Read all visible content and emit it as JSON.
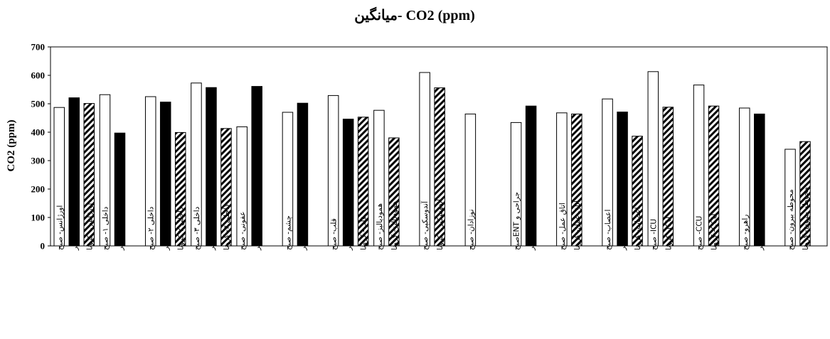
{
  "chart_data": {
    "type": "bar",
    "title": "CO2 (ppm) -میانگین",
    "ylabel": "CO2 (ppm)",
    "ylim": [
      0,
      700
    ],
    "yticks": [
      0,
      100,
      200,
      300,
      400,
      500,
      600,
      700
    ],
    "grid": false,
    "legend": "none",
    "colors": {
      "white": "#ffffff",
      "black": "#000000",
      "hatch": "#000000",
      "outline": "#000000"
    },
    "groups": [
      {
        "bars": [
          {
            "label": "اورژانس- صبح",
            "value": 487,
            "fill": "white"
          },
          {
            "label": "اورژانس- عصر",
            "value": 521,
            "fill": "black"
          },
          {
            "label": "اورژانس- کرونا",
            "value": 501,
            "fill": "hatch"
          }
        ]
      },
      {
        "bars": [
          {
            "label": "داخلی ۱- صبح",
            "value": 532,
            "fill": "white"
          },
          {
            "label": "داخلی ۱- عصر",
            "value": 397,
            "fill": "black"
          }
        ]
      },
      {
        "bars": [
          {
            "label": "داخلی ۲- صبح",
            "value": 525,
            "fill": "white"
          },
          {
            "label": "داخلی ۲- عصر",
            "value": 506,
            "fill": "black"
          },
          {
            "label": "داخلی ۲ کرونا",
            "value": 399,
            "fill": "hatch"
          }
        ]
      },
      {
        "bars": [
          {
            "label": "داخلی ۳- صبح",
            "value": 573,
            "fill": "white"
          },
          {
            "label": "داخلی ۳- عصر",
            "value": 557,
            "fill": "black"
          },
          {
            "label": "داخلی ۳- کرونا",
            "value": 413,
            "fill": "hatch"
          }
        ]
      },
      {
        "bars": [
          {
            "label": "عفونی- صبح",
            "value": 419,
            "fill": "white"
          },
          {
            "label": "عفونی- عصر",
            "value": 561,
            "fill": "black"
          }
        ]
      },
      {
        "bars": [
          {
            "label": "چشم- صبح",
            "value": 470,
            "fill": "white"
          },
          {
            "label": "چشم- عصر",
            "value": 502,
            "fill": "black"
          }
        ]
      },
      {
        "bars": [
          {
            "label": "قلب- صبح",
            "value": 529,
            "fill": "white"
          },
          {
            "label": "قلب- عصر",
            "value": 446,
            "fill": "black"
          },
          {
            "label": "قلب- کرونا",
            "value": 453,
            "fill": "hatch"
          }
        ]
      },
      {
        "bars": [
          {
            "label": "همودیالیز- صبح",
            "value": 477,
            "fill": "white"
          },
          {
            "label": "همودیالیز- کرونا",
            "value": 380,
            "fill": "hatch"
          }
        ]
      },
      {
        "bars": [
          {
            "label": "آندوسکپی- صبح",
            "value": 610,
            "fill": "white"
          },
          {
            "label": "آندوسکپی- کرونا",
            "value": 556,
            "fill": "hatch"
          }
        ]
      },
      {
        "bars": [
          {
            "label": "نوزادان- صبح",
            "value": 464,
            "fill": "white"
          }
        ]
      },
      {
        "bars": [
          {
            "label": "جراحی و ENTصبح",
            "value": 434,
            "fill": "white"
          },
          {
            "label": "جراحی و ENTعصر",
            "value": 492,
            "fill": "black"
          }
        ]
      },
      {
        "bars": [
          {
            "label": "اتاق عمل- صبح",
            "value": 468,
            "fill": "white"
          },
          {
            "label": "اتاق عمل- کرونا",
            "value": 464,
            "fill": "hatch"
          }
        ]
      },
      {
        "bars": [
          {
            "label": "اعصاب- صبح",
            "value": 517,
            "fill": "white"
          },
          {
            "label": "اعصاب- عصر",
            "value": 471,
            "fill": "black"
          },
          {
            "label": "اعصاب- کرونا",
            "value": 386,
            "fill": "hatch"
          }
        ]
      },
      {
        "bars": [
          {
            "label": "ICU- صبح",
            "value": 613,
            "fill": "white"
          },
          {
            "label": "ICU- کرونا",
            "value": 488,
            "fill": "hatch"
          }
        ]
      },
      {
        "bars": [
          {
            "label": "CCU- صبح",
            "value": 566,
            "fill": "white"
          },
          {
            "label": "CCU- کرونا",
            "value": 492,
            "fill": "hatch"
          }
        ]
      },
      {
        "bars": [
          {
            "label": "راهرو- صبح",
            "value": 485,
            "fill": "white"
          },
          {
            "label": "راهرو- عصر",
            "value": 464,
            "fill": "black"
          }
        ]
      },
      {
        "bars": [
          {
            "label": "محوطه بیرون- صبح",
            "value": 340,
            "fill": "white"
          },
          {
            "label": "محوطه بیرون- کرونا",
            "value": 367,
            "fill": "hatch"
          }
        ]
      }
    ]
  }
}
